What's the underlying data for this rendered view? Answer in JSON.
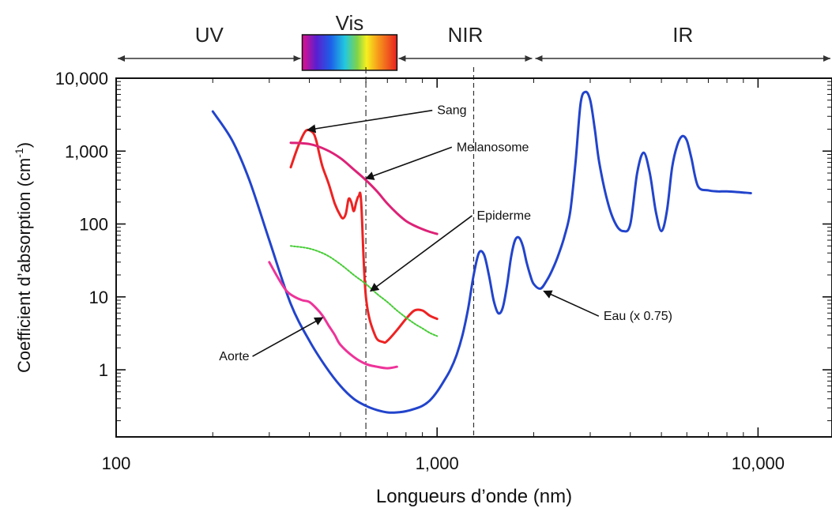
{
  "chart_data": {
    "type": "line",
    "xlabel": "Longueurs d’onde (nm)",
    "ylabel_main": "Coefficient d’absorption (cm",
    "ylabel_sup": "-1",
    "ylabel_tail": ")",
    "x_scale": "log",
    "y_scale": "log",
    "xlim": [
      100,
      17000
    ],
    "ylim": [
      0.12,
      10000
    ],
    "x_ticks": [
      {
        "value": 100,
        "label": "100"
      },
      {
        "value": 1000,
        "label": "1,000"
      },
      {
        "value": 10000,
        "label": "10,000"
      }
    ],
    "y_ticks": [
      {
        "value": 1,
        "label": "1"
      },
      {
        "value": 10,
        "label": "10"
      },
      {
        "value": 100,
        "label": "100"
      },
      {
        "value": 1000,
        "label": "1,000"
      },
      {
        "value": 10000,
        "label": "10,000"
      }
    ],
    "bands": [
      {
        "label": "UV",
        "from": 100,
        "to": 380
      },
      {
        "label": "Vis",
        "from": 380,
        "to": 750
      },
      {
        "label": "NIR",
        "from": 750,
        "to": 2000
      },
      {
        "label": "IR",
        "from": 2000,
        "to": 17000
      }
    ],
    "reference_lines": [
      600,
      1300
    ],
    "series": [
      {
        "name": "Eau (x 0.75)",
        "color": "#2244cc",
        "x": [
          200,
          230,
          260,
          300,
          350,
          400,
          450,
          500,
          550,
          600,
          650,
          700,
          750,
          800,
          850,
          900,
          950,
          1000,
          1050,
          1100,
          1150,
          1200,
          1250,
          1300,
          1350,
          1400,
          1450,
          1500,
          1550,
          1600,
          1650,
          1700,
          1750,
          1800,
          1850,
          1900,
          1950,
          2000,
          2100,
          2200,
          2300,
          2400,
          2500,
          2600,
          2700,
          2800,
          2900,
          3000,
          3100,
          3200,
          3400,
          3600,
          3800,
          4000,
          4200,
          4400,
          4600,
          4800,
          5000,
          5200,
          5400,
          5600,
          5800,
          6000,
          6200,
          6500,
          7000,
          7500,
          8000,
          9000,
          9500
        ],
        "y": [
          3500,
          1400,
          400,
          60,
          8,
          2.5,
          1.1,
          0.6,
          0.4,
          0.32,
          0.28,
          0.26,
          0.26,
          0.27,
          0.29,
          0.32,
          0.38,
          0.5,
          0.7,
          1.0,
          1.6,
          3,
          7,
          20,
          40,
          38,
          20,
          9,
          6,
          7,
          14,
          35,
          60,
          65,
          50,
          30,
          20,
          15,
          13,
          17,
          25,
          40,
          70,
          150,
          700,
          4500,
          6500,
          5000,
          2000,
          700,
          200,
          100,
          80,
          100,
          500,
          950,
          500,
          150,
          80,
          150,
          600,
          1200,
          1600,
          1400,
          800,
          330,
          290,
          280,
          280,
          270,
          265
        ]
      },
      {
        "name": "Sang",
        "color": "#ee2222",
        "x": [
          350,
          370,
          390,
          410,
          420,
          430,
          440,
          460,
          480,
          500,
          510,
          520,
          530,
          540,
          550,
          560,
          570,
          580,
          600,
          640,
          680,
          700,
          750,
          800,
          850,
          900,
          950,
          1000
        ],
        "y": [
          600,
          1200,
          1900,
          1800,
          1400,
          900,
          600,
          350,
          190,
          130,
          120,
          140,
          220,
          200,
          150,
          200,
          240,
          200,
          10,
          3,
          2.4,
          2.5,
          3.5,
          5,
          6.5,
          6.5,
          5.5,
          5
        ]
      },
      {
        "name": "Melanosome",
        "color": "#dd2277",
        "x": [
          350,
          400,
          450,
          500,
          550,
          600,
          650,
          700,
          750,
          800,
          850,
          900,
          950,
          1000
        ],
        "y": [
          1300,
          1250,
          1050,
          800,
          560,
          400,
          280,
          190,
          140,
          110,
          95,
          85,
          78,
          73
        ]
      },
      {
        "name": "Epiderme",
        "color": "#44cc33",
        "dashed": true,
        "x": [
          350,
          400,
          450,
          500,
          550,
          600,
          650,
          700,
          750,
          800,
          850,
          900,
          950,
          1000
        ],
        "y": [
          50,
          46,
          38,
          28,
          20,
          15,
          11,
          8.5,
          6.5,
          5.2,
          4.3,
          3.7,
          3.2,
          2.9
        ]
      },
      {
        "name": "Aorte",
        "color": "#ee3399",
        "x": [
          300,
          320,
          340,
          360,
          380,
          400,
          420,
          440,
          460,
          480,
          500,
          550,
          600,
          650,
          700,
          750
        ],
        "y": [
          30,
          18,
          12,
          10,
          9,
          8.5,
          7,
          5.5,
          4,
          3,
          2.2,
          1.5,
          1.2,
          1.1,
          1.05,
          1.1
        ]
      }
    ],
    "annotations": [
      {
        "text": "Sang",
        "series": "Sang",
        "at_x": 395,
        "at_y": 1950,
        "text_x": 1000,
        "text_y": 3200,
        "align": "start"
      },
      {
        "text": "Melanosome",
        "series": "Melanosome",
        "at_x": 600,
        "at_y": 420,
        "text_x": 1150,
        "text_y": 1000,
        "align": "start"
      },
      {
        "text": "Epiderme",
        "series": "Epiderme",
        "at_x": 620,
        "at_y": 12,
        "text_x": 1330,
        "text_y": 115,
        "align": "start"
      },
      {
        "text": "Eau (x 0.75)",
        "series": "Eau (x 0.75)",
        "at_x": 2150,
        "at_y": 12,
        "text_x": 3300,
        "text_y": 4.8,
        "align": "start"
      },
      {
        "text": "Aorte",
        "series": "Aorte",
        "at_x": 440,
        "at_y": 5.2,
        "text_x": 260,
        "text_y": 1.35,
        "align": "end"
      }
    ]
  }
}
